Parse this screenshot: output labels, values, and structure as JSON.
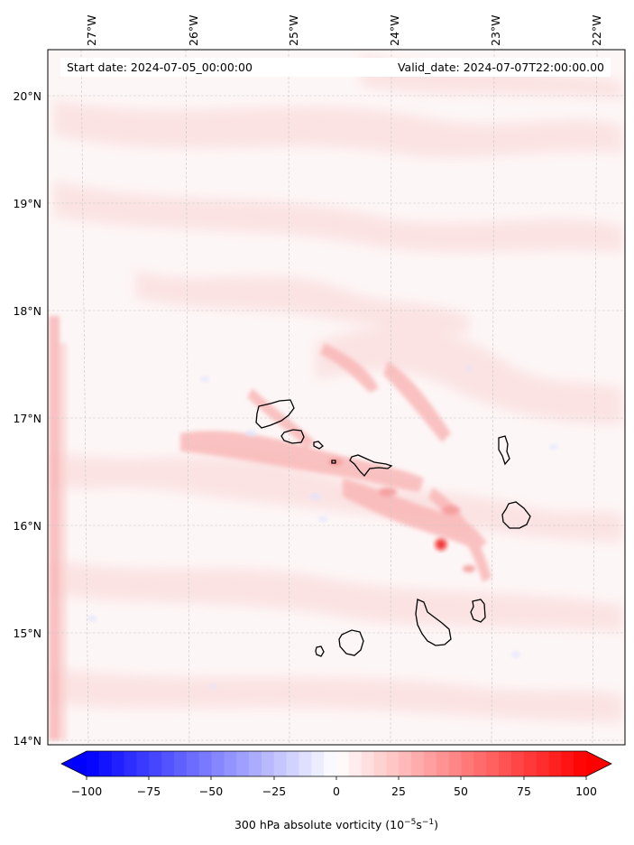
{
  "map": {
    "start_label": "Start date: 2024-07-05_00:00:00",
    "valid_label": "Valid_date: 2024-07-07T22:00:00.00",
    "lon_labels": [
      "27°W",
      "26°W",
      "25°W",
      "24°W",
      "23°W",
      "22°W"
    ],
    "lat_labels": [
      "20°N",
      "19°N",
      "18°N",
      "17°N",
      "16°N",
      "15°N",
      "14°N"
    ],
    "gridlines": true
  },
  "colorbar": {
    "ticks": [
      "−100",
      "−75",
      "−50",
      "−25",
      "0",
      "25",
      "50",
      "75",
      "100"
    ],
    "label_main": "300 hPa absolute vorticity (10",
    "label_exp1": "−5",
    "label_mid": "s",
    "label_exp2": "−1",
    "label_end": ")",
    "min": -100,
    "max": 100,
    "negative_color": "#0000ff",
    "positive_color": "#ff0000",
    "extend": "both"
  }
}
